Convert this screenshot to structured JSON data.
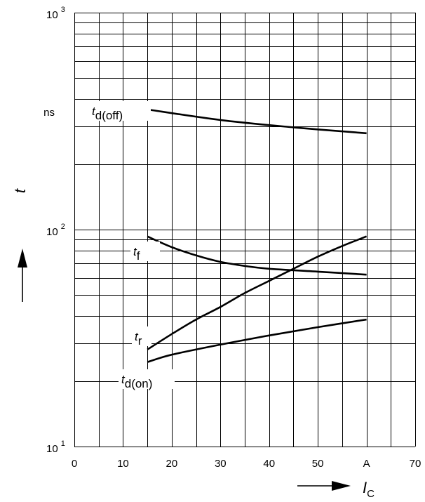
{
  "chart_data": {
    "type": "line",
    "x_axis": {
      "label_main": "I",
      "label_sub": "C",
      "range": [
        0,
        70
      ],
      "ticks": [
        {
          "value": 0,
          "label": "0"
        },
        {
          "value": 10,
          "label": "10"
        },
        {
          "value": 20,
          "label": "20"
        },
        {
          "value": 30,
          "label": "30"
        },
        {
          "value": 40,
          "label": "40"
        },
        {
          "value": 50,
          "label": "50"
        },
        {
          "value": 60,
          "label": "A"
        },
        {
          "value": 70,
          "label": "70"
        }
      ],
      "grid_step": 5
    },
    "y_axis": {
      "label": "t",
      "unit_label": "ns",
      "scale": "log",
      "range": [
        10,
        1000
      ],
      "ticks": [
        {
          "value": 10,
          "base": "10",
          "exp": "1"
        },
        {
          "value": 100,
          "base": "10",
          "exp": "2"
        },
        {
          "value": 1000,
          "base": "10",
          "exp": "3"
        }
      ]
    },
    "grid": true,
    "series": [
      {
        "label_main": "t",
        "label_sub": "d(off)",
        "x": [
          15,
          30,
          45,
          60
        ],
        "y": [
          358,
          320,
          296,
          278
        ]
      },
      {
        "label_main": "t",
        "label_sub": "f",
        "x": [
          15,
          20,
          25,
          30,
          35,
          40,
          50,
          60
        ],
        "y": [
          93,
          83,
          76,
          71,
          68,
          66,
          64,
          62
        ]
      },
      {
        "label_main": "t",
        "label_sub": "r",
        "x": [
          15,
          20,
          25,
          30,
          35,
          40,
          45,
          50,
          55,
          60
        ],
        "y": [
          28,
          33,
          38.5,
          44,
          51,
          58,
          66,
          75,
          84,
          93
        ]
      },
      {
        "label_main": "t",
        "label_sub": "d(on)",
        "x": [
          15,
          20,
          30,
          40,
          50,
          60
        ],
        "y": [
          24.5,
          26.5,
          29.5,
          32.5,
          35.5,
          38.5
        ]
      }
    ]
  }
}
